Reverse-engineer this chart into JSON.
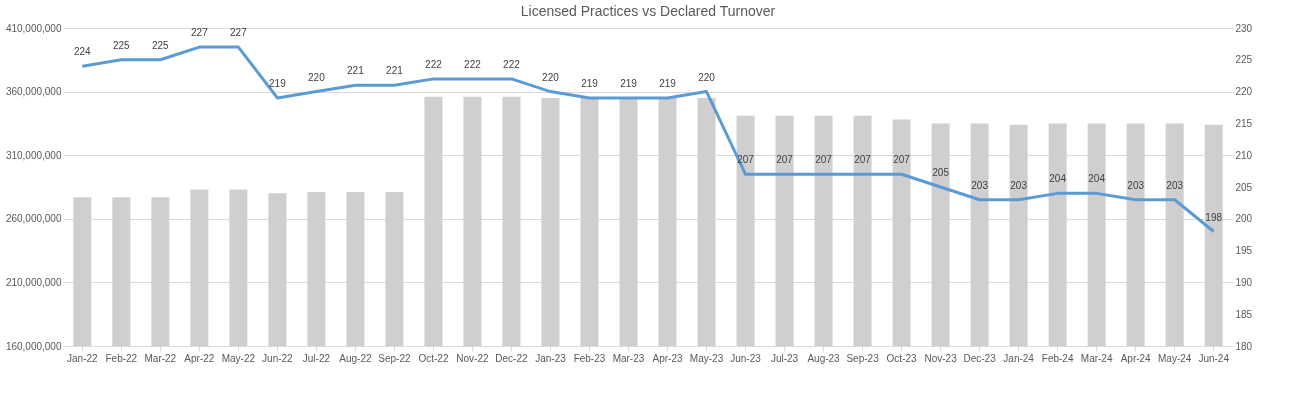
{
  "chart_data": {
    "type": "bar",
    "title": "Licensed Practices vs Declared Turnover",
    "categories": [
      "Jan-22",
      "Feb-22",
      "Mar-22",
      "Apr-22",
      "May-22",
      "Jun-22",
      "Jul-22",
      "Aug-22",
      "Sep-22",
      "Oct-22",
      "Nov-22",
      "Dec-22",
      "Jan-23",
      "Feb-23",
      "Mar-23",
      "Apr-23",
      "May-23",
      "Jun-23",
      "Jul-23",
      "Aug-23",
      "Sep-23",
      "Oct-23",
      "Nov-23",
      "Dec-23",
      "Jan-24",
      "Feb-24",
      "Mar-24",
      "Apr-24",
      "May-24",
      "Jun-24"
    ],
    "series": [
      {
        "color": "#d0cece",
        "values": [
          277000000,
          277000000,
          277000000,
          283000000,
          283000000,
          280000000,
          281000000,
          281000000,
          281000000,
          356000000,
          356000000,
          356000000,
          355000000,
          355000000,
          355000000,
          355000000,
          355000000,
          341000000,
          341000000,
          341000000,
          341000000,
          338000000,
          335000000,
          335000000,
          334000000,
          335000000,
          335000000,
          335000000,
          335000000,
          334000000
        ]
      },
      {
        "type": "line",
        "axis": "y2",
        "color": "#5b9bd5",
        "values": [
          224,
          225,
          225,
          227,
          227,
          219,
          220,
          221,
          221,
          222,
          222,
          222,
          220,
          219,
          219,
          219,
          220,
          207,
          207,
          207,
          207,
          207,
          205,
          203,
          203,
          204,
          204,
          203,
          203,
          198
        ],
        "value_labels": [
          "224",
          "225",
          "225",
          "227",
          "227",
          "219",
          "220",
          "221",
          "221",
          "222",
          "222",
          "222",
          "220",
          "219",
          "219",
          "219",
          "220",
          "207",
          "207",
          "207",
          "207",
          "207",
          "205",
          "203",
          "203",
          "204",
          "204",
          "203",
          "203",
          "198"
        ]
      }
    ],
    "ylim": [
      160000000,
      410000000
    ],
    "yticks": [
      {
        "value": 160000000,
        "label": "160,000,000"
      },
      {
        "value": 210000000,
        "label": "210,000,000"
      },
      {
        "value": 260000000,
        "label": "260,000,000"
      },
      {
        "value": 310000000,
        "label": "310,000,000"
      },
      {
        "value": 360000000,
        "label": "360,000,000"
      },
      {
        "value": 410000000,
        "label": "410,000,000"
      }
    ],
    "y2lim": [
      180,
      230
    ],
    "y2ticks": [
      180,
      185,
      190,
      195,
      200,
      205,
      210,
      215,
      220,
      225,
      230
    ],
    "grid": "y",
    "legend": false
  }
}
